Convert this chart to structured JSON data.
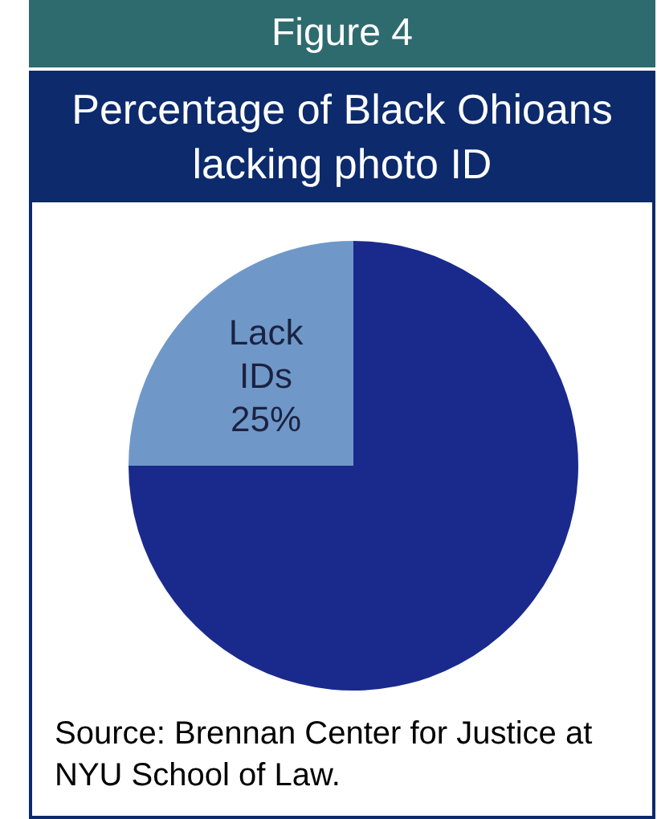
{
  "chart_data": {
    "type": "pie",
    "title": "Figure 4",
    "subtitle": "Percentage of Black Ohioans lacking photo ID",
    "categories": [
      null,
      "Lack IDs"
    ],
    "values": [
      75,
      25
    ],
    "colors": [
      "#1a2a8c",
      "#6f98c9"
    ],
    "value_labels": [
      null,
      "25%"
    ],
    "legend": false,
    "annotations": [
      "Source: Brennan Center for Justice at NYU School of Law."
    ]
  }
}
